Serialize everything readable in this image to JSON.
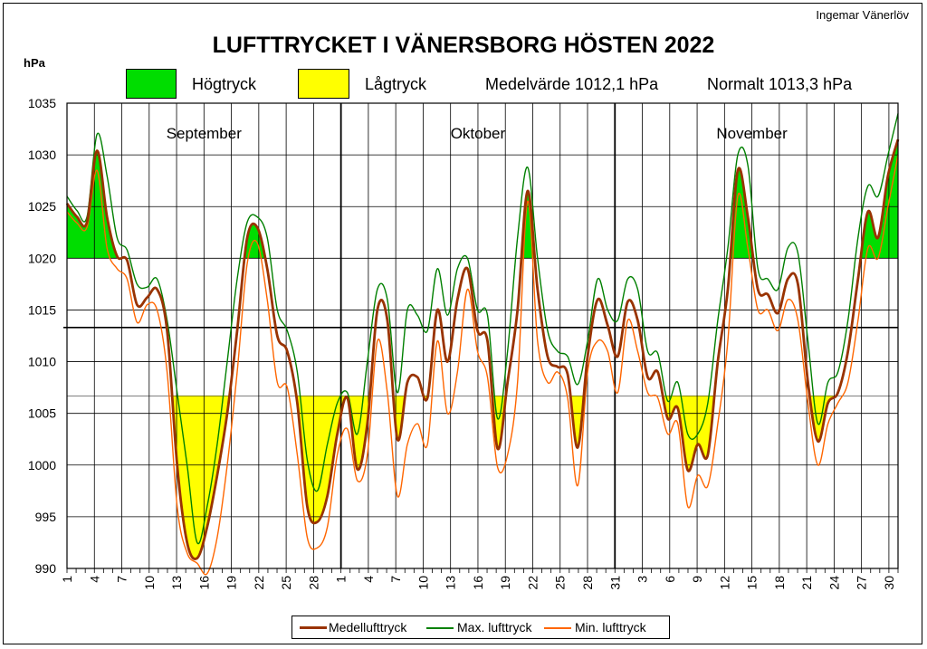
{
  "header": {
    "author": "Ingemar Vänerlöv",
    "title": "LUFTTRYCKET I VÄNERSBORG  HÖSTEN 2022",
    "y_unit": "hPa",
    "high_label": "Högtryck",
    "low_label": "Lågtryck",
    "mean_text": "Medelvärde  1012,1 hPa",
    "normal_text": "Normalt  1013,3 hPa"
  },
  "legend": {
    "mean": "Medellufttryck",
    "max": "Max. lufttryck",
    "min": "Min. lufttryck"
  },
  "colors": {
    "high_fill": "#00dd00",
    "low_fill": "#ffff00",
    "mean_line": "#993300",
    "max_line": "#008000",
    "min_line": "#ff6600",
    "grid": "#000000"
  },
  "chart_data": {
    "type": "line",
    "title": "LUFTTRYCKET I VÄNERSBORG  HÖSTEN 2022",
    "ylabel": "hPa",
    "ylim": [
      990,
      1035
    ],
    "y_ticks": [
      990,
      995,
      1000,
      1005,
      1010,
      1015,
      1020,
      1025,
      1030,
      1035
    ],
    "normal_line": 1013.3,
    "mean_value": 1012.1,
    "high_threshold": 1020,
    "low_threshold": 1006.7,
    "months": [
      "September",
      "Oktober",
      "November"
    ],
    "x_tick_labels": [
      "1",
      "4",
      "7",
      "10",
      "13",
      "16",
      "19",
      "22",
      "25",
      "28",
      "1",
      "4",
      "7",
      "10",
      "13",
      "16",
      "19",
      "22",
      "25",
      "28",
      "31",
      "3",
      "6",
      "9",
      "12",
      "15",
      "18",
      "21",
      "24",
      "27",
      "30"
    ],
    "legend_position": "bottom",
    "series": [
      {
        "name": "Medellufttryck",
        "values": [
          1025.3,
          1024,
          1023.5,
          1030.4,
          1024,
          1020.2,
          1019.8,
          1015.5,
          1016.2,
          1017,
          1013,
          1000,
          992.5,
          991,
          994,
          999,
          1005,
          1013,
          1022,
          1023,
          1019,
          1012.5,
          1011,
          1006,
          996,
          994.5,
          997,
          1003,
          1006.5,
          999.6,
          1004,
          1015,
          1014,
          1002.5,
          1008,
          1008.5,
          1006.5,
          1015,
          1010,
          1016,
          1019,
          1013,
          1012,
          1001.6,
          1008,
          1015,
          1026.5,
          1017,
          1010.5,
          1009.5,
          1008.8,
          1001.7,
          1010.5,
          1016,
          1013.5,
          1010.5,
          1015.8,
          1014,
          1008.5,
          1009,
          1004.5,
          1005.5,
          999.5,
          1002,
          1001,
          1010,
          1017,
          1028.5,
          1024,
          1017,
          1016.5,
          1014.7,
          1018,
          1017.5,
          1008,
          1002.3,
          1006,
          1007,
          1011,
          1018,
          1024.5,
          1022,
          1028,
          1031.5
        ]
      },
      {
        "name": "Max. lufttryck",
        "values": [
          1026,
          1024.6,
          1024,
          1032,
          1028,
          1022,
          1020.8,
          1017.5,
          1017.2,
          1018,
          1014,
          1007,
          1000,
          992.5,
          996,
          1002,
          1010,
          1018,
          1023.5,
          1024,
          1022,
          1015,
          1013,
          1009,
          1000.5,
          997.5,
          1002,
          1006,
          1007,
          1003,
          1010,
          1017,
          1016,
          1007,
          1015,
          1014.5,
          1013,
          1019,
          1014.5,
          1019,
          1020,
          1015,
          1014.5,
          1004.5,
          1011,
          1022,
          1028.8,
          1020,
          1013,
          1011,
          1010.5,
          1007.8,
          1012,
          1018,
          1015,
          1014,
          1018,
          1017,
          1011,
          1010.8,
          1006.2,
          1008,
          1003,
          1003,
          1006,
          1014,
          1021,
          1030,
          1029,
          1019,
          1018,
          1017,
          1021,
          1020.5,
          1012,
          1004,
          1008,
          1009,
          1014,
          1022,
          1027,
          1026,
          1030,
          1034
        ]
      },
      {
        "name": "Min. lufttryck",
        "values": [
          1024.5,
          1023.4,
          1023,
          1028.5,
          1021,
          1019,
          1018,
          1013.8,
          1015.5,
          1015,
          1009,
          996,
          991.5,
          990.5,
          989.5,
          993,
          1000,
          1009,
          1019.5,
          1021.5,
          1016,
          1008,
          1007.5,
          1001,
          993,
          992,
          994,
          1001,
          1003.5,
          998.5,
          1001,
          1012,
          1007,
          997,
          1002,
          1004,
          1002,
          1012,
          1005,
          1009,
          1017,
          1011,
          1008.5,
          999.8,
          1001,
          1008,
          1025.5,
          1012,
          1008,
          1009,
          1006.5,
          998,
          1009,
          1012,
          1011,
          1007,
          1014,
          1011,
          1007,
          1006.5,
          1003,
          1004,
          996,
          999,
          998,
          1004,
          1012,
          1026,
          1021,
          1015,
          1015,
          1013,
          1016,
          1014,
          1006,
          1000,
          1004,
          1006,
          1008,
          1014,
          1021,
          1020,
          1025,
          1030
        ]
      }
    ]
  }
}
